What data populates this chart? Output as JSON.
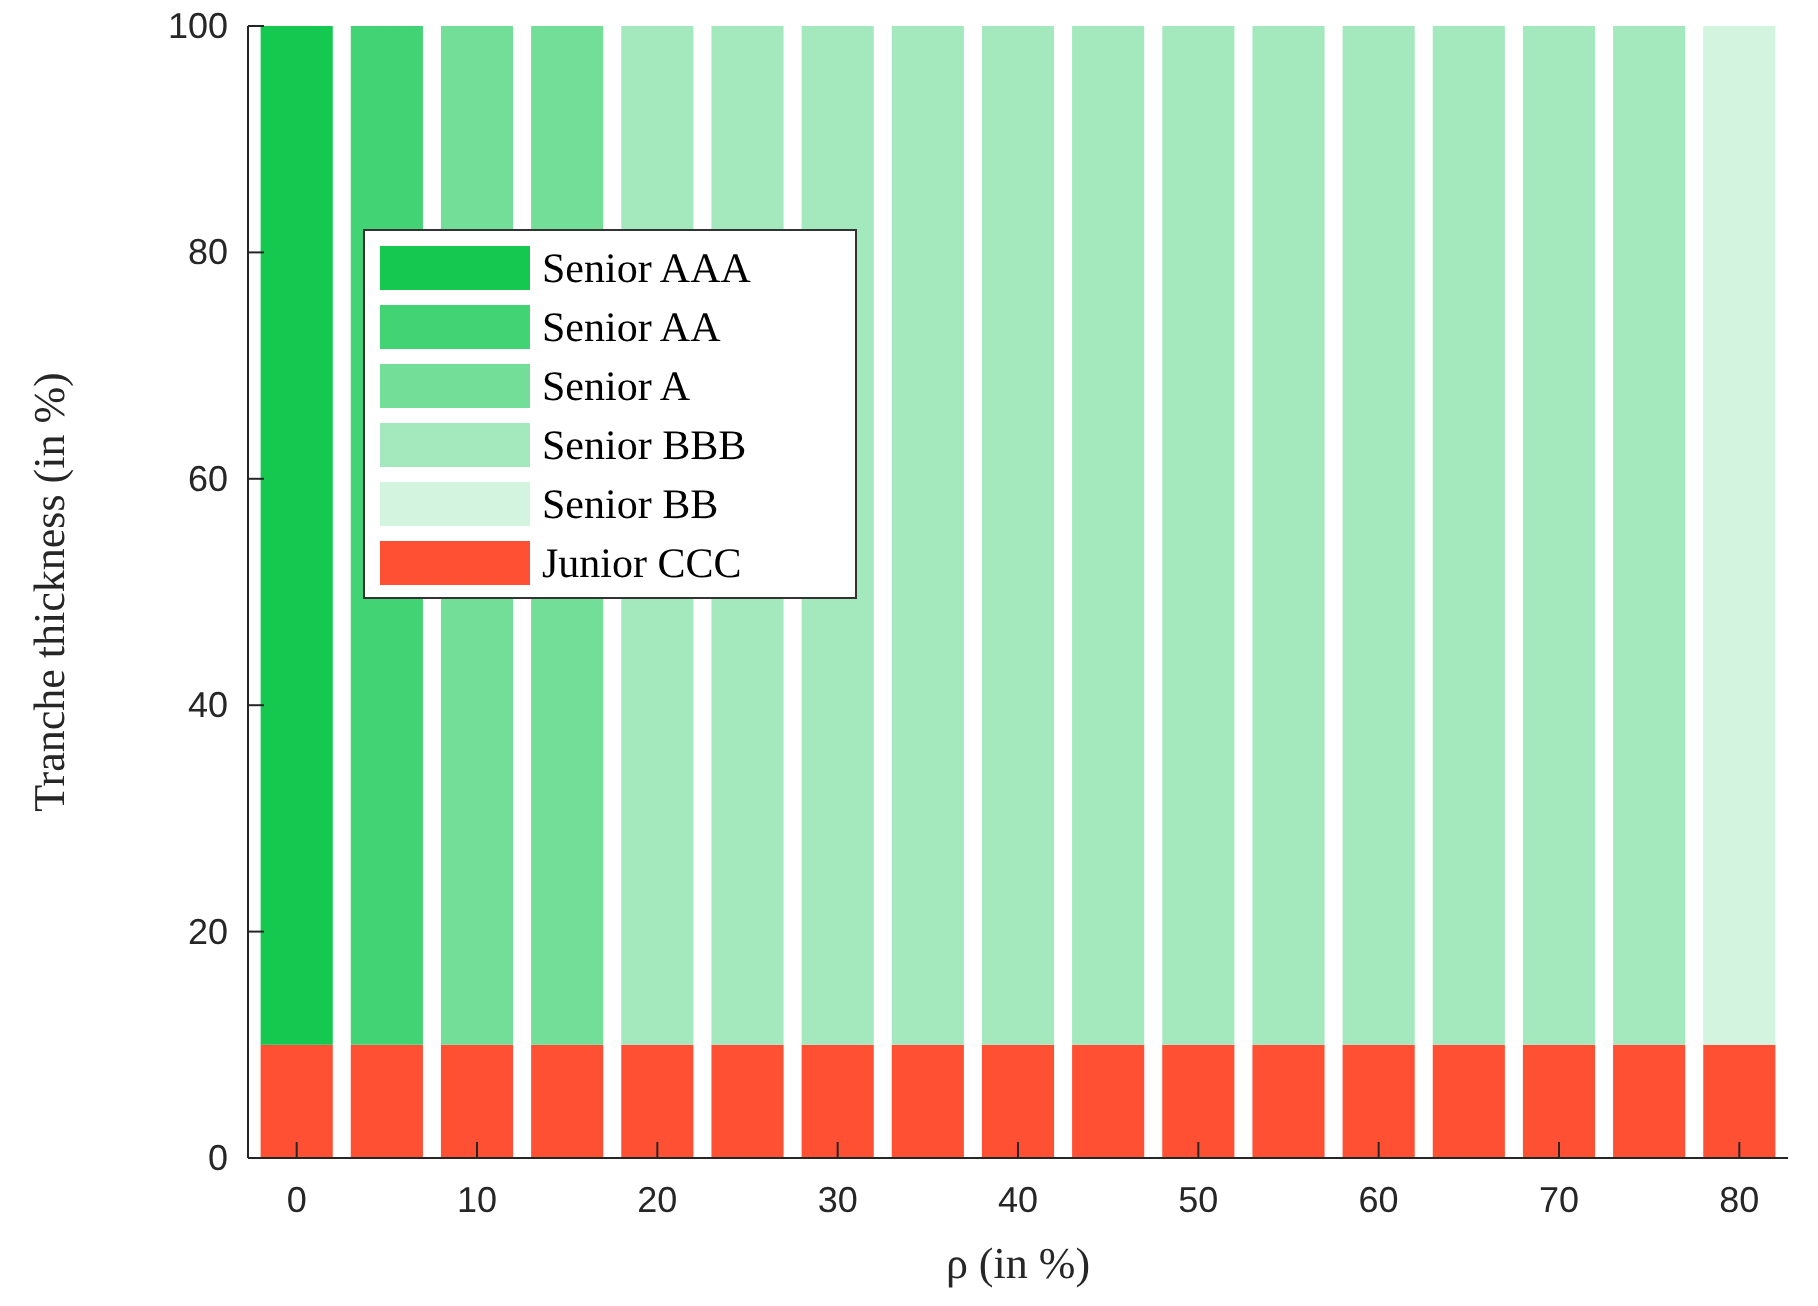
{
  "chart_data": {
    "type": "bar",
    "stacked": true,
    "xlabel": "ρ (in %)",
    "ylabel": "Tranche thickness (in %)",
    "x": [
      0,
      5,
      10,
      15,
      20,
      25,
      30,
      35,
      40,
      45,
      50,
      55,
      60,
      65,
      70,
      75,
      80
    ],
    "xlim": [
      -2.7,
      82.7
    ],
    "xticks": [
      0,
      10,
      20,
      30,
      40,
      50,
      60,
      70,
      80
    ],
    "ylim": [
      0,
      100
    ],
    "yticks": [
      0,
      20,
      40,
      60,
      80,
      100
    ],
    "legend": "top left",
    "grid": false,
    "series": [
      {
        "name": "Junior CCC",
        "color": "#ff5033",
        "values": [
          10,
          10,
          10,
          10,
          10,
          10,
          10,
          10,
          10,
          10,
          10,
          10,
          10,
          10,
          10,
          10,
          10
        ]
      },
      {
        "name": "Senior AAA",
        "color": "#14c850",
        "values": [
          90,
          null,
          null,
          null,
          null,
          null,
          null,
          null,
          null,
          null,
          null,
          null,
          null,
          null,
          null,
          null,
          null
        ]
      },
      {
        "name": "Senior AA",
        "color": "#42d474",
        "values": [
          null,
          90,
          null,
          null,
          null,
          null,
          null,
          null,
          null,
          null,
          null,
          null,
          null,
          null,
          null,
          null,
          null
        ]
      },
      {
        "name": "Senior A",
        "color": "#72de98",
        "values": [
          null,
          null,
          90,
          90,
          null,
          null,
          null,
          null,
          null,
          null,
          null,
          null,
          null,
          null,
          null,
          null,
          null
        ]
      },
      {
        "name": "Senior BBB",
        "color": "#a3e9bd",
        "values": [
          null,
          null,
          null,
          null,
          90,
          90,
          90,
          90,
          90,
          90,
          90,
          90,
          90,
          90,
          90,
          90,
          null
        ]
      },
      {
        "name": "Senior BB",
        "color": "#d3f4df",
        "values": [
          null,
          null,
          null,
          null,
          null,
          null,
          null,
          null,
          null,
          null,
          null,
          null,
          null,
          null,
          null,
          null,
          90
        ]
      }
    ]
  }
}
